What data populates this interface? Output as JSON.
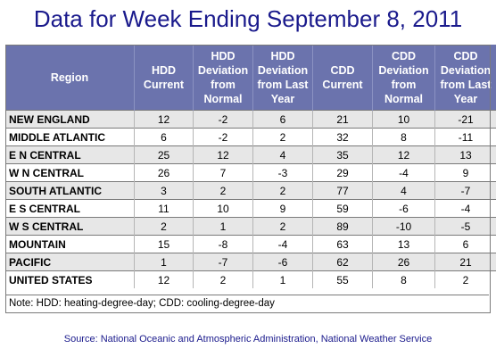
{
  "title": "Data for Week Ending September 8, 2011",
  "chart_data": {
    "type": "table",
    "columns": [
      "Region",
      "HDD Current",
      "HDD Deviation from Normal",
      "HDD Deviation from Last Year",
      "CDD Current",
      "CDD Deviation from Normal",
      "CDD Deviation from Last Year"
    ],
    "rows": [
      [
        "NEW ENGLAND",
        "12",
        "-2",
        "6",
        "21",
        "10",
        "-21"
      ],
      [
        "MIDDLE ATLANTIC",
        "6",
        "-2",
        "2",
        "32",
        "8",
        "-11"
      ],
      [
        "E N CENTRAL",
        "25",
        "12",
        "4",
        "35",
        "12",
        "13"
      ],
      [
        "W N CENTRAL",
        "26",
        "7",
        "-3",
        "29",
        "-4",
        "9"
      ],
      [
        "SOUTH ATLANTIC",
        "3",
        "2",
        "2",
        "77",
        "4",
        "-7"
      ],
      [
        "E S CENTRAL",
        "11",
        "10",
        "9",
        "59",
        "-6",
        "-4"
      ],
      [
        "W S CENTRAL",
        "2",
        "1",
        "2",
        "89",
        "-10",
        "-5"
      ],
      [
        "MOUNTAIN",
        "15",
        "-8",
        "-4",
        "63",
        "13",
        "6"
      ],
      [
        "PACIFIC",
        "1",
        "-7",
        "-6",
        "62",
        "26",
        "21"
      ],
      [
        "UNITED STATES",
        "12",
        "2",
        "1",
        "55",
        "8",
        "2"
      ]
    ]
  },
  "note": "Note: HDD: heating-degree-day; CDD: cooling-degree-day",
  "source": "Source:  National Oceanic and Atmospheric Administration, National Weather Service",
  "colors": {
    "header_bg": "#6b73ad",
    "title": "#1a1a8c",
    "stripe": "#e7e7e7"
  }
}
